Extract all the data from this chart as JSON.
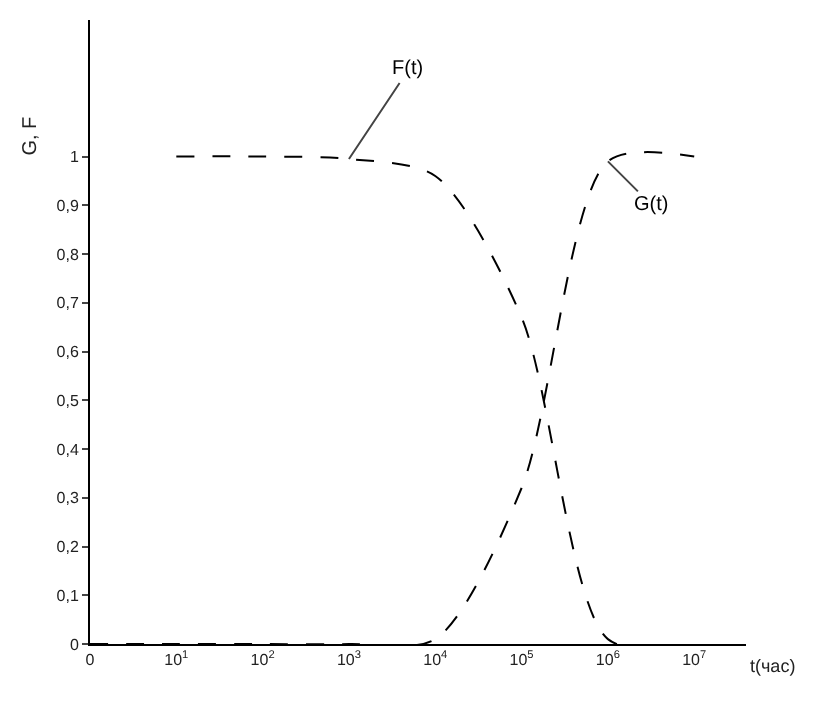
{
  "chart_data": {
    "type": "line",
    "xlabel": "t(час)",
    "ylabel": "G, F",
    "categories": [
      "0",
      "10$^{1}$",
      "10$^{2}$",
      "10$^{3}$",
      "10$^{4}$",
      "10$^{5}$",
      "10$^{6}$",
      "10$^{7}$"
    ],
    "ylim": [
      0,
      1.28
    ],
    "yticks": [
      {
        "value": 0,
        "label": "0"
      },
      {
        "value": 0.1,
        "label": "0,1"
      },
      {
        "value": 0.2,
        "label": "0,2"
      },
      {
        "value": 0.3,
        "label": "0,3"
      },
      {
        "value": 0.4,
        "label": "0,4"
      },
      {
        "value": 0.5,
        "label": "0,5"
      },
      {
        "value": 0.6,
        "label": "0,6"
      },
      {
        "value": 0.7,
        "label": "0,7"
      },
      {
        "value": 0.8,
        "label": "0,8"
      },
      {
        "value": 0.9,
        "label": "0,9"
      },
      {
        "value": 1,
        "label": "1"
      }
    ],
    "legend": false,
    "line_style": "dashed",
    "series": [
      {
        "name": "F(t)",
        "color": "#000000",
        "values": [
          null,
          1,
          1,
          0.995,
          0.96,
          0.67,
          0.01,
          0
        ]
      },
      {
        "name": "G(t)",
        "color": "#000000",
        "values": [
          0,
          0,
          0,
          0,
          0.01,
          0.32,
          0.99,
          1
        ]
      }
    ]
  }
}
